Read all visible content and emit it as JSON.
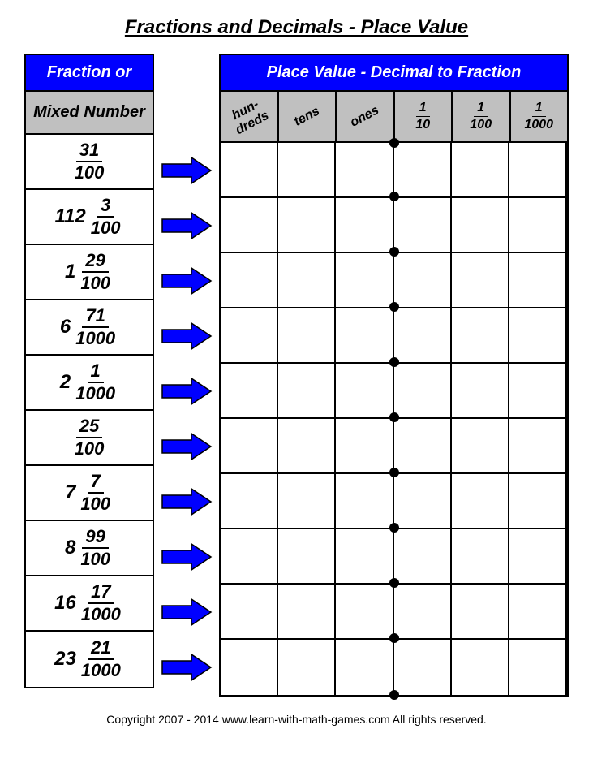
{
  "title": "Fractions and Decimals - Place Value",
  "left_header_1": "Fraction or",
  "left_header_2": "Mixed Number",
  "right_header": "Place Value - Decimal to Fraction",
  "pv_columns_text": [
    "hun-\ndreds",
    "tens",
    "ones"
  ],
  "pv_columns_frac": [
    {
      "num": "1",
      "den": "10"
    },
    {
      "num": "1",
      "den": "100"
    },
    {
      "num": "1",
      "den": "1000"
    }
  ],
  "fractions": [
    {
      "whole": "",
      "num": "31",
      "den": "100"
    },
    {
      "whole": "112",
      "num": "3",
      "den": "100"
    },
    {
      "whole": "1",
      "num": "29",
      "den": "100"
    },
    {
      "whole": "6",
      "num": "71",
      "den": "1000"
    },
    {
      "whole": "2",
      "num": "1",
      "den": "1000"
    },
    {
      "whole": "",
      "num": "25",
      "den": "100"
    },
    {
      "whole": "7",
      "num": "7",
      "den": "100"
    },
    {
      "whole": "8",
      "num": "99",
      "den": "100"
    },
    {
      "whole": "16",
      "num": "17",
      "den": "1000"
    },
    {
      "whole": "23",
      "num": "21",
      "den": "1000"
    }
  ],
  "arrow_color": "#0000ff",
  "footer": "Copyright  2007 - 2014   www.learn-with-math-games.com   All rights reserved."
}
